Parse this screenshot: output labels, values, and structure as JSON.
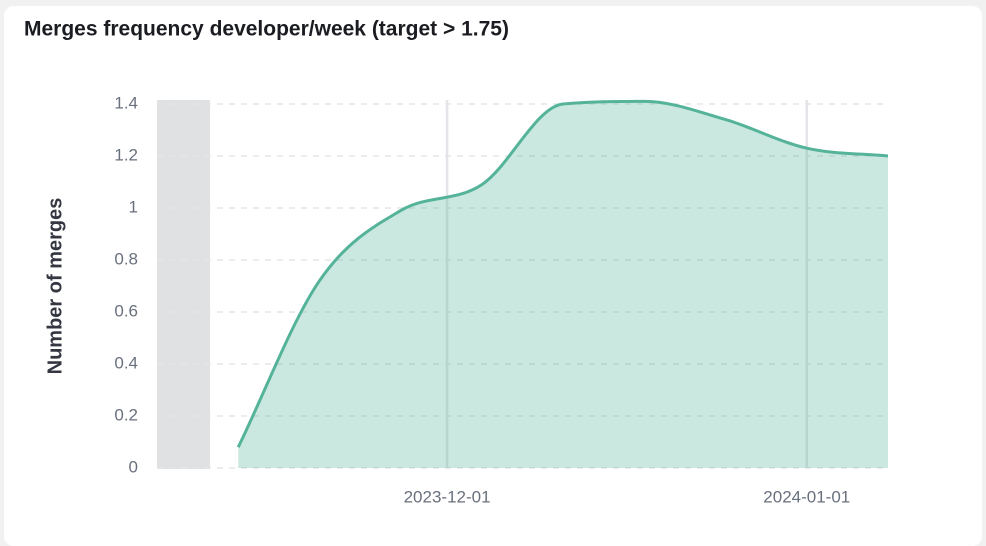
{
  "chart_data": {
    "type": "area",
    "title": "Merges frequency developer/week (target > 1.75)",
    "y_label": "Number of merges",
    "x": [
      "2023-11-13",
      "2023-11-20",
      "2023-11-27",
      "2023-12-04",
      "2023-12-11",
      "2023-12-18",
      "2023-12-25",
      "2024-01-01",
      "2024-01-08"
    ],
    "series": [
      {
        "name": "Number of merges",
        "color": "#54b399",
        "values": [
          0.08,
          0.72,
          0.99,
          1.09,
          1.4,
          1.41,
          1.34,
          1.23,
          1.2
        ]
      }
    ],
    "xlim": [
      "2023-11-06",
      "2024-01-08"
    ],
    "xticks": [
      "2023-12-01",
      "2024-01-01"
    ],
    "ylim": [
      0,
      1.4
    ],
    "yticks": [
      0,
      0.2,
      0.4,
      0.6,
      0.8,
      1,
      1.2,
      1.4
    ],
    "grid": true
  }
}
